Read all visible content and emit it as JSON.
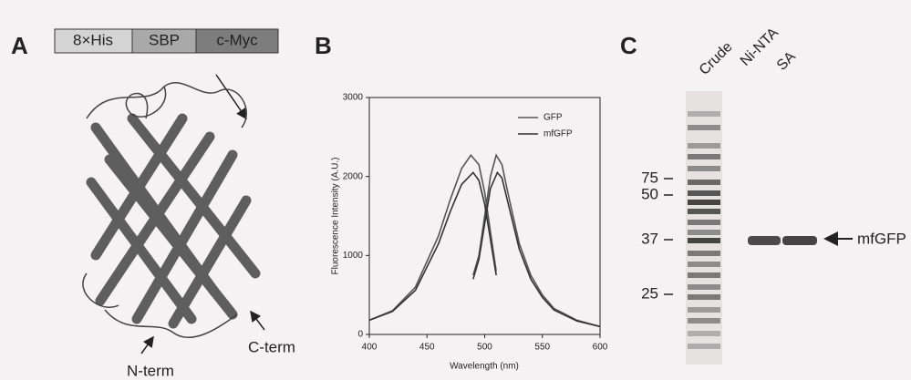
{
  "panel_a": {
    "label": "A",
    "tags": [
      "8×His",
      "SBP",
      "c-Myc"
    ],
    "n_term": "N-term",
    "c_term": "C-term"
  },
  "panel_b": {
    "label": "B"
  },
  "chart_data": {
    "type": "line",
    "x_label": "Wavelength (nm)",
    "y_label": "Fluorescence Intensity (A.U.)",
    "xlim": [
      400,
      600
    ],
    "ylim": [
      0,
      3000
    ],
    "xticks": [
      400,
      450,
      500,
      550,
      600
    ],
    "yticks": [
      0,
      1000,
      2000,
      3000
    ],
    "legend": "upper right",
    "series": [
      {
        "name": "GFP",
        "color": "#555555",
        "x": [
          400,
          420,
          440,
          460,
          470,
          480,
          488,
          495,
          500,
          505,
          510,
          null,
          490,
          495,
          500,
          505,
          510,
          515,
          520,
          530,
          540,
          550,
          560,
          580,
          600
        ],
        "values": [
          180,
          300,
          600,
          1250,
          1700,
          2100,
          2270,
          2150,
          1800,
          1300,
          800,
          null,
          750,
          1000,
          1500,
          2000,
          2270,
          2150,
          1800,
          1150,
          750,
          500,
          330,
          180,
          100
        ]
      },
      {
        "name": "mfGFP",
        "color": "#333333",
        "x": [
          400,
          420,
          440,
          460,
          470,
          480,
          490,
          495,
          500,
          505,
          510,
          null,
          490,
          495,
          500,
          505,
          511,
          515,
          520,
          530,
          540,
          550,
          560,
          580,
          600
        ],
        "values": [
          180,
          290,
          560,
          1150,
          1550,
          1900,
          2050,
          1950,
          1650,
          1200,
          750,
          null,
          700,
          950,
          1400,
          1850,
          2050,
          1980,
          1680,
          1080,
          700,
          470,
          310,
          170,
          100
        ]
      }
    ]
  },
  "panel_c": {
    "label": "C",
    "lanes": [
      "Crude",
      "Ni-NTA",
      "SA"
    ],
    "markers": [
      "75",
      "50",
      "37",
      "25"
    ],
    "band_label": "mfGFP"
  }
}
